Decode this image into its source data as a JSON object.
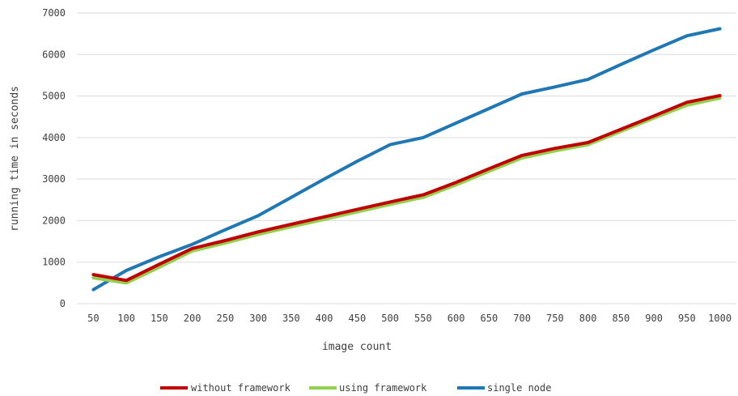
{
  "chart_data": {
    "type": "line",
    "x": [
      50,
      100,
      150,
      200,
      250,
      300,
      350,
      400,
      450,
      500,
      550,
      600,
      650,
      700,
      750,
      800,
      850,
      900,
      950,
      1000
    ],
    "xlabel": "image count",
    "ylabel": "running time in seconds",
    "ylim": [
      0,
      7000
    ],
    "yticks": [
      0,
      1000,
      2000,
      3000,
      4000,
      5000,
      6000,
      7000
    ],
    "grid": true,
    "legend_position": "bottom",
    "series": [
      {
        "name": "without framework",
        "color": "#c00000",
        "values": [
          700,
          560,
          950,
          1330,
          1520,
          1730,
          1910,
          2090,
          2270,
          2450,
          2620,
          2920,
          3250,
          3570,
          3740,
          3880,
          4200,
          4520,
          4850,
          5010
        ]
      },
      {
        "name": "using framework",
        "color": "#92d050",
        "values": [
          620,
          500,
          880,
          1270,
          1460,
          1670,
          1850,
          2030,
          2210,
          2390,
          2560,
          2860,
          3190,
          3510,
          3680,
          3830,
          4150,
          4470,
          4780,
          4950
        ]
      },
      {
        "name": "single node",
        "color": "#1f77b4",
        "values": [
          340,
          800,
          1130,
          1430,
          1780,
          2120,
          2560,
          3000,
          3430,
          3830,
          4000,
          4350,
          4700,
          5050,
          5220,
          5400,
          5760,
          6110,
          6450,
          6620
        ]
      }
    ]
  }
}
